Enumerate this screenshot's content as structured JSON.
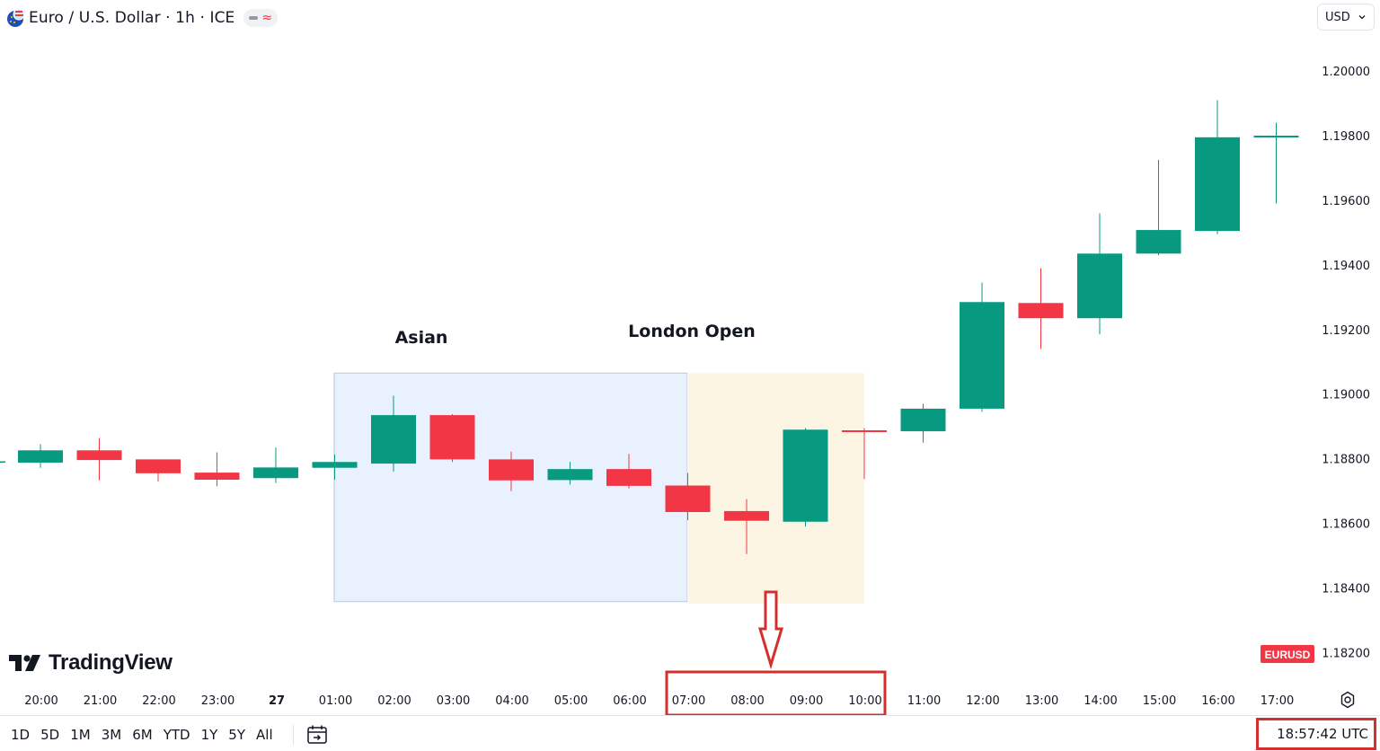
{
  "header": {
    "title": "Euro / U.S. Dollar · 1h · ICE",
    "flag_icon": "eu-us-flag-icon",
    "status_pill_icons": [
      "market-closed-icon",
      "delayed-data-icon"
    ]
  },
  "currency_select": {
    "value": "USD",
    "icon": "chevron-down-icon"
  },
  "logo": {
    "text": "TradingView"
  },
  "symbol_badge": {
    "text": "EURUSD",
    "color": "#f23645"
  },
  "colors": {
    "up": "#089981",
    "down": "#f23645",
    "asian_zone": "#e8f1fd",
    "london_zone": "#fdf5e4",
    "annotation": "#d32f2f"
  },
  "bottom_bar": {
    "ranges": [
      "1D",
      "5D",
      "1M",
      "3M",
      "6M",
      "YTD",
      "1Y",
      "5Y",
      "All"
    ],
    "clock": "18:57:42 UTC",
    "goto_icon": "calendar-goto-icon",
    "settings_icon": "settings-icon"
  },
  "chart_data": {
    "type": "candlestick",
    "title": "",
    "ylim": [
      1.1814,
      1.2022
    ],
    "y_ticks": [
      "1.20000",
      "1.19800",
      "1.19600",
      "1.19400",
      "1.19200",
      "1.19000",
      "1.18800",
      "1.18600",
      "1.18400",
      "1.18200"
    ],
    "x_ticks": [
      "20:00",
      "21:00",
      "22:00",
      "23:00",
      "27",
      "01:00",
      "02:00",
      "03:00",
      "04:00",
      "05:00",
      "06:00",
      "07:00",
      "08:00",
      "09:00",
      "10:00",
      "11:00",
      "12:00",
      "13:00",
      "14:00",
      "15:00",
      "16:00",
      "17:00"
    ],
    "candles": [
      {
        "time": "20:00",
        "open": 1.18788,
        "high": 1.18845,
        "low": 1.18772,
        "close": 1.18826
      },
      {
        "time": "21:00",
        "open": 1.18826,
        "high": 1.18864,
        "low": 1.18733,
        "close": 1.18796
      },
      {
        "time": "22:00",
        "open": 1.18798,
        "high": 1.18798,
        "low": 1.1873,
        "close": 1.18755
      },
      {
        "time": "23:00",
        "open": 1.18757,
        "high": 1.1882,
        "low": 1.18715,
        "close": 1.18735
      },
      {
        "time": "27",
        "open": 1.1874,
        "high": 1.18835,
        "low": 1.18725,
        "close": 1.18773
      },
      {
        "time": "01:00",
        "open": 1.18772,
        "high": 1.18813,
        "low": 1.18735,
        "close": 1.1879
      },
      {
        "time": "02:00",
        "open": 1.18785,
        "high": 1.18995,
        "low": 1.1876,
        "close": 1.18935
      },
      {
        "time": "03:00",
        "open": 1.18935,
        "high": 1.18938,
        "low": 1.1879,
        "close": 1.18798
      },
      {
        "time": "04:00",
        "open": 1.18798,
        "high": 1.18822,
        "low": 1.187,
        "close": 1.18733
      },
      {
        "time": "05:00",
        "open": 1.18734,
        "high": 1.1879,
        "low": 1.1872,
        "close": 1.18768
      },
      {
        "time": "06:00",
        "open": 1.18768,
        "high": 1.18815,
        "low": 1.18708,
        "close": 1.18716
      },
      {
        "time": "07:00",
        "open": 1.18717,
        "high": 1.18756,
        "low": 1.1861,
        "close": 1.18635
      },
      {
        "time": "08:00",
        "open": 1.18638,
        "high": 1.18675,
        "low": 1.18505,
        "close": 1.18608
      },
      {
        "time": "09:00",
        "open": 1.18605,
        "high": 1.18895,
        "low": 1.1859,
        "close": 1.1889
      },
      {
        "time": "10:00",
        "open": 1.18888,
        "high": 1.18895,
        "low": 1.18737,
        "close": 1.18885
      },
      {
        "time": "11:00",
        "open": 1.18885,
        "high": 1.1897,
        "low": 1.1885,
        "close": 1.18955
      },
      {
        "time": "12:00",
        "open": 1.18955,
        "high": 1.19345,
        "low": 1.18945,
        "close": 1.19285
      },
      {
        "time": "13:00",
        "open": 1.19282,
        "high": 1.1939,
        "low": 1.1914,
        "close": 1.19235
      },
      {
        "time": "14:00",
        "open": 1.19235,
        "high": 1.1956,
        "low": 1.19185,
        "close": 1.19435
      },
      {
        "time": "15:00",
        "open": 1.19435,
        "high": 1.19725,
        "low": 1.1943,
        "close": 1.19508
      },
      {
        "time": "16:00",
        "open": 1.19505,
        "high": 1.1991,
        "low": 1.19495,
        "close": 1.19795
      },
      {
        "time": "17:00",
        "open": 1.19795,
        "high": 1.1984,
        "low": 1.1959,
        "close": 1.198
      }
    ],
    "zones": [
      {
        "label": "Asian",
        "from": "01:00",
        "to": "07:00",
        "high": 1.19065,
        "low": 1.18358,
        "color": "#e8f1fd"
      },
      {
        "label": "London Open",
        "from": "07:00",
        "to": "10:00",
        "high": 1.19065,
        "low": 1.18352,
        "color": "#fdf5e4"
      }
    ],
    "highlighted_times": [
      "07:00",
      "08:00",
      "09:00",
      "10:00"
    ]
  }
}
